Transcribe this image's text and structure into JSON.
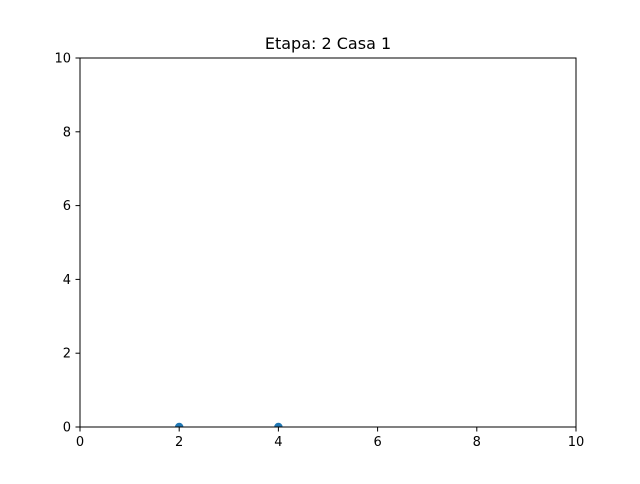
{
  "chart_data": {
    "type": "scatter",
    "title": "Etapa: 2 Casa 1",
    "xlabel": "",
    "ylabel": "",
    "xlim": [
      0,
      10
    ],
    "ylim": [
      0,
      10
    ],
    "x_ticks": [
      0,
      2,
      4,
      6,
      8,
      10
    ],
    "y_ticks": [
      0,
      2,
      4,
      6,
      8,
      10
    ],
    "grid": false,
    "legend": "none",
    "series": [
      {
        "color": "#1f77b4",
        "points": [
          {
            "x": 2,
            "y": 0
          },
          {
            "x": 4,
            "y": 0
          }
        ]
      }
    ]
  }
}
